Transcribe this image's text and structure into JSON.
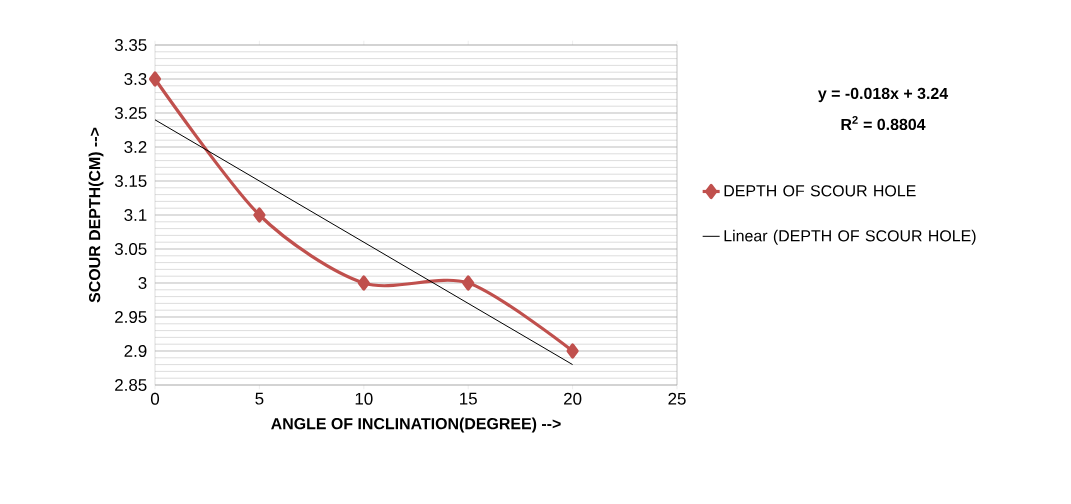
{
  "chart_data": {
    "type": "line",
    "xlabel": "ANGLE OF INCLINATION(DEGREE) -->",
    "ylabel": "SCOUR DEPTH(CM) -->",
    "x": [
      0,
      5,
      10,
      15,
      20
    ],
    "series": [
      {
        "name": "DEPTH OF SCOUR HOLE",
        "color": "#c0504d",
        "values": [
          3.3,
          3.1,
          3.0,
          3.0,
          2.9
        ],
        "marker": "diamond",
        "line_style": "solid"
      },
      {
        "name": "Linear (DEPTH OF SCOUR HOLE)",
        "type": "line",
        "color": "#000000",
        "x": [
          0,
          20
        ],
        "values": [
          3.24,
          2.88
        ],
        "marker": "none",
        "line_style": "solid"
      }
    ],
    "xlim": [
      0,
      25
    ],
    "xticks": [
      0,
      5,
      10,
      15,
      20,
      25
    ],
    "ylim": [
      2.85,
      3.35
    ],
    "yticks": [
      2.85,
      2.9,
      2.95,
      3,
      3.05,
      3.1,
      3.15,
      3.2,
      3.25,
      3.3,
      3.35
    ],
    "grid": "y",
    "legend": "right",
    "annotations": [
      "y = -0.018x + 3.24",
      "R$^{2}$ = 0.8804"
    ]
  }
}
